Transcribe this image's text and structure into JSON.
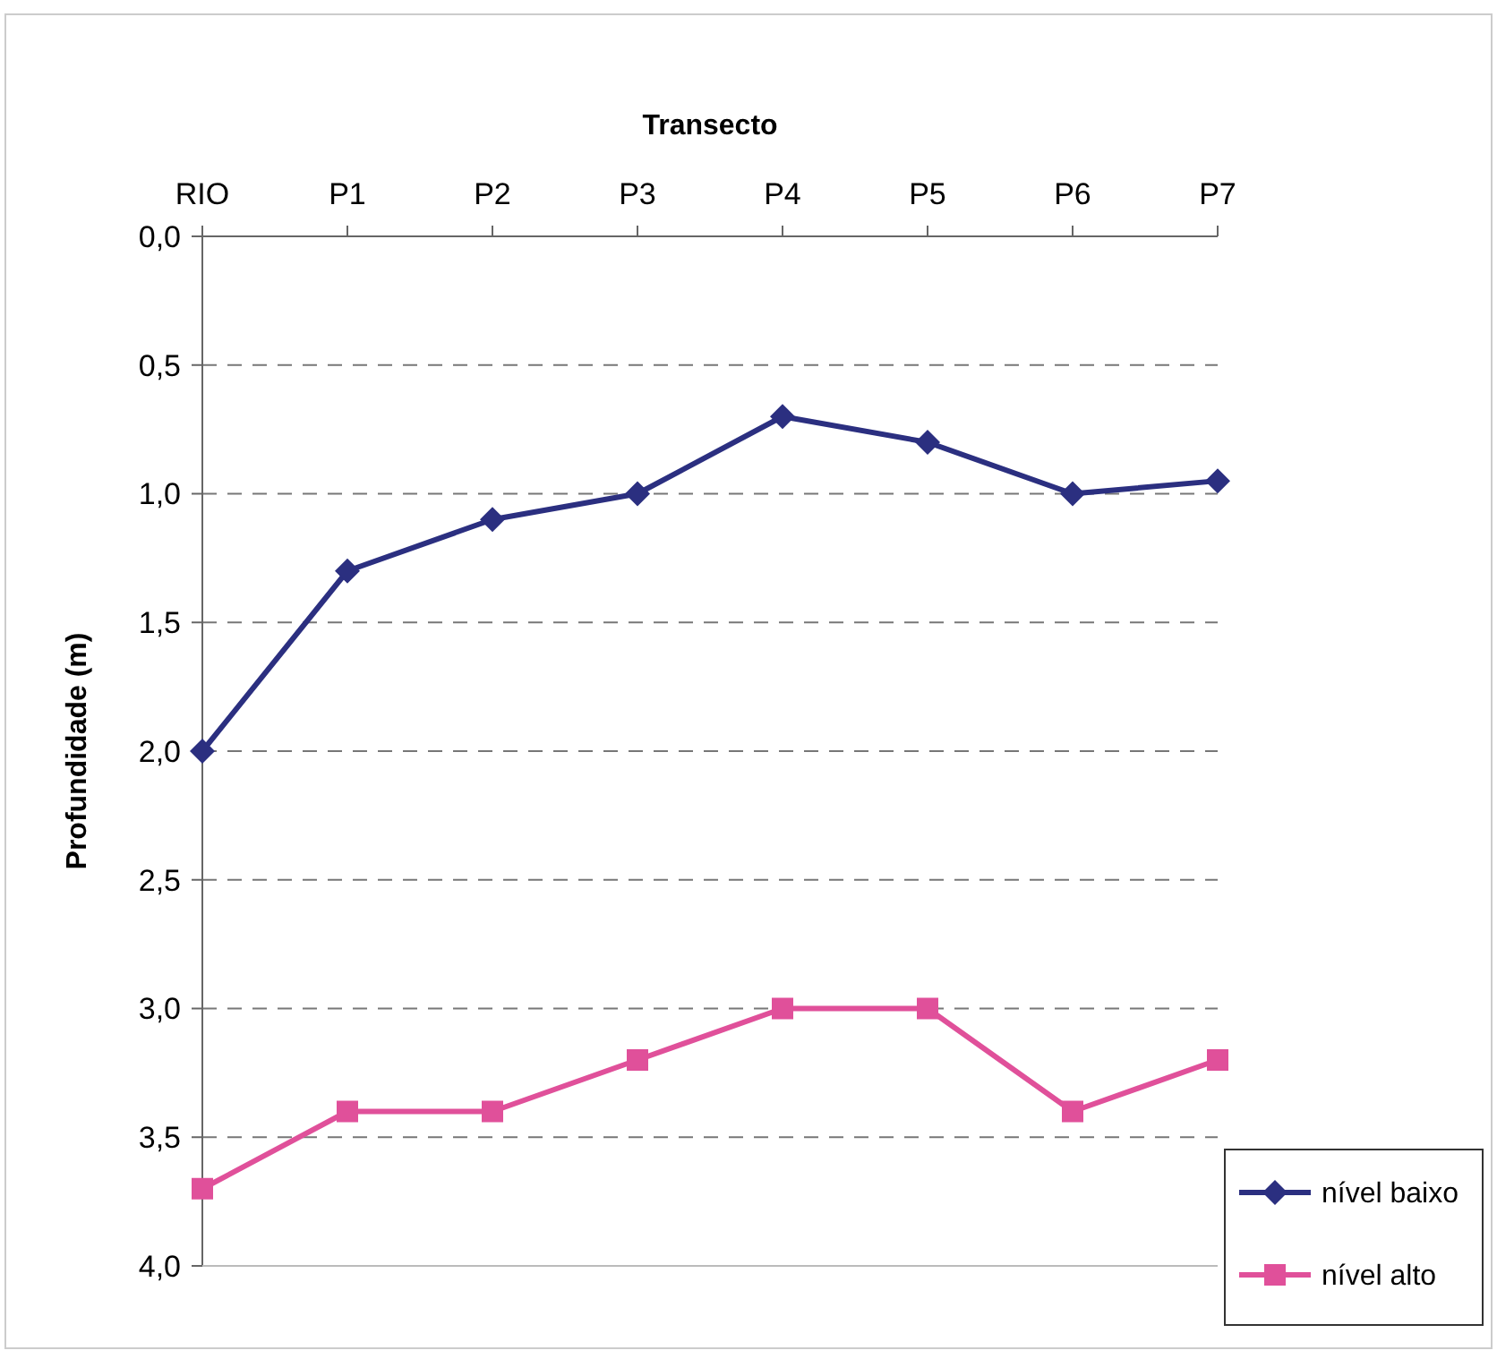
{
  "chart_data": {
    "type": "line",
    "xlabel": "Transecto",
    "ylabel": "Profundidade (m)",
    "categories": [
      "RIO",
      "P1",
      "P2",
      "P3",
      "P4",
      "P5",
      "P6",
      "P7"
    ],
    "series": [
      {
        "name": "nível baixo",
        "color": "#2b2f80",
        "marker": "diamond",
        "values": [
          2.0,
          1.3,
          1.1,
          1.0,
          0.7,
          0.8,
          1.0,
          0.95
        ]
      },
      {
        "name": "nível alto",
        "color": "#e0509a",
        "marker": "square",
        "values": [
          3.7,
          3.4,
          3.4,
          3.2,
          3.0,
          3.0,
          3.4,
          3.2
        ]
      }
    ],
    "ylim": [
      4.0,
      0.0
    ],
    "yticks": [
      {
        "value": 0,
        "label": "0,0"
      },
      {
        "value": 0.5,
        "label": "0,5"
      },
      {
        "value": 1,
        "label": "1,0"
      },
      {
        "value": 1.5,
        "label": "1,5"
      },
      {
        "value": 2,
        "label": "2,0"
      },
      {
        "value": 2.5,
        "label": "2,5"
      },
      {
        "value": 3,
        "label": "3,0"
      },
      {
        "value": 3.5,
        "label": "3,5"
      },
      {
        "value": 4,
        "label": "4,0"
      }
    ],
    "grid": "y",
    "legend": "bottom right",
    "line_style": "solid"
  }
}
